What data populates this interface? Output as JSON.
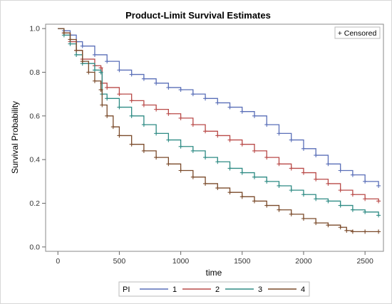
{
  "chart_data": {
    "type": "line",
    "title": "Product-Limit Survival Estimates",
    "xlabel": "time",
    "ylabel": "Survival Probability",
    "xlim": [
      -100,
      2650
    ],
    "ylim": [
      -0.02,
      1.02
    ],
    "xticks": [
      0,
      500,
      1000,
      1500,
      2000,
      2500
    ],
    "yticks": [
      0.0,
      0.2,
      0.4,
      0.6,
      0.8,
      1.0
    ],
    "xtick_labels": [
      "0",
      "500",
      "1000",
      "1500",
      "2000",
      "2500"
    ],
    "ytick_labels": [
      "0.0",
      "0.2",
      "0.4",
      "0.6",
      "0.8",
      "1.0"
    ],
    "grid": false,
    "step": true,
    "censor_legend": "+ Censored",
    "legend_title": "PI",
    "legend_position": "bottom",
    "series": [
      {
        "name": "1",
        "color": "#5a6fb8",
        "x": [
          0,
          50,
          100,
          150,
          200,
          300,
          400,
          500,
          600,
          700,
          800,
          900,
          1000,
          1100,
          1200,
          1300,
          1400,
          1500,
          1600,
          1700,
          1800,
          1900,
          2000,
          2100,
          2200,
          2300,
          2400,
          2500,
          2610
        ],
        "values": [
          1.0,
          0.99,
          0.97,
          0.94,
          0.92,
          0.88,
          0.85,
          0.81,
          0.79,
          0.77,
          0.75,
          0.73,
          0.72,
          0.7,
          0.68,
          0.66,
          0.64,
          0.62,
          0.6,
          0.56,
          0.52,
          0.49,
          0.45,
          0.42,
          0.38,
          0.35,
          0.33,
          0.3,
          0.28
        ]
      },
      {
        "name": "2",
        "color": "#b94a48",
        "x": [
          0,
          50,
          100,
          150,
          200,
          300,
          350,
          360,
          400,
          500,
          600,
          700,
          800,
          900,
          1000,
          1100,
          1200,
          1300,
          1400,
          1500,
          1600,
          1700,
          1800,
          1900,
          2000,
          2100,
          2200,
          2300,
          2400,
          2500,
          2610
        ],
        "values": [
          1.0,
          0.98,
          0.94,
          0.9,
          0.86,
          0.83,
          0.82,
          0.75,
          0.73,
          0.7,
          0.67,
          0.65,
          0.63,
          0.61,
          0.59,
          0.56,
          0.53,
          0.51,
          0.49,
          0.47,
          0.44,
          0.41,
          0.38,
          0.36,
          0.34,
          0.31,
          0.29,
          0.26,
          0.24,
          0.22,
          0.21
        ]
      },
      {
        "name": "3",
        "color": "#2e8b84",
        "x": [
          0,
          50,
          100,
          150,
          200,
          300,
          350,
          360,
          400,
          500,
          600,
          700,
          800,
          900,
          1000,
          1100,
          1200,
          1300,
          1400,
          1500,
          1600,
          1700,
          1800,
          1900,
          2000,
          2100,
          2200,
          2300,
          2400,
          2500,
          2610
        ],
        "values": [
          1.0,
          0.97,
          0.93,
          0.88,
          0.84,
          0.81,
          0.8,
          0.7,
          0.68,
          0.64,
          0.6,
          0.56,
          0.52,
          0.49,
          0.46,
          0.44,
          0.41,
          0.39,
          0.36,
          0.34,
          0.32,
          0.3,
          0.28,
          0.26,
          0.24,
          0.22,
          0.21,
          0.19,
          0.17,
          0.16,
          0.145
        ]
      },
      {
        "name": "4",
        "color": "#7a4a2a",
        "x": [
          0,
          50,
          100,
          150,
          200,
          250,
          300,
          350,
          360,
          400,
          450,
          500,
          600,
          700,
          800,
          900,
          1000,
          1100,
          1200,
          1300,
          1400,
          1500,
          1600,
          1700,
          1800,
          1900,
          2000,
          2100,
          2200,
          2300,
          2350,
          2400,
          2500,
          2610
        ],
        "values": [
          1.0,
          0.98,
          0.95,
          0.9,
          0.85,
          0.8,
          0.76,
          0.72,
          0.65,
          0.6,
          0.55,
          0.51,
          0.47,
          0.44,
          0.41,
          0.38,
          0.35,
          0.32,
          0.29,
          0.27,
          0.25,
          0.23,
          0.21,
          0.19,
          0.17,
          0.15,
          0.13,
          0.11,
          0.1,
          0.09,
          0.075,
          0.07,
          0.07,
          0.07
        ]
      }
    ]
  }
}
